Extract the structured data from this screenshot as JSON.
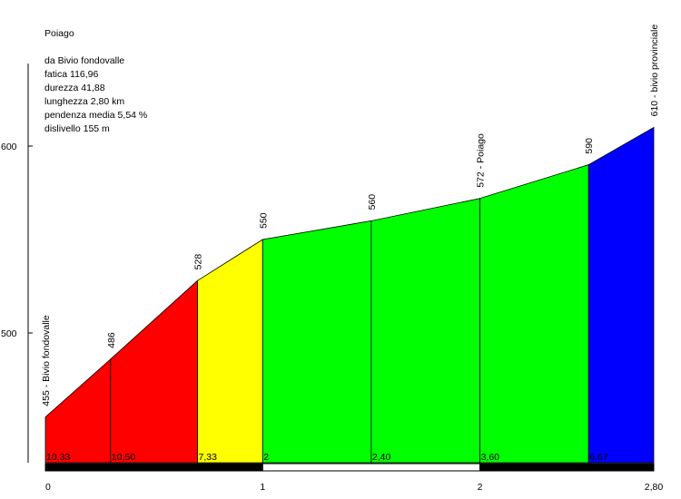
{
  "chart_data": {
    "type": "area",
    "title": "Poiago",
    "info_lines": [
      "da Bivio fondovalle",
      "fatica 116,96",
      "durezza 41,88",
      "lunghezza 2,80 km",
      "pendenza media 5,54 %",
      "dislivello 155 m"
    ],
    "xlabel": "",
    "ylabel": "",
    "xlim": [
      0,
      2.8
    ],
    "ylim": [
      440,
      645
    ],
    "x_ticks": [
      {
        "value": 0,
        "label": "0"
      },
      {
        "value": 1,
        "label": "1"
      },
      {
        "value": 2,
        "label": "2"
      },
      {
        "value": 2.8,
        "label": "2,80"
      }
    ],
    "y_ticks": [
      {
        "value": 500,
        "label": "500"
      },
      {
        "value": 600,
        "label": "600"
      }
    ],
    "points": [
      {
        "km": 0,
        "elevation": 455,
        "label": "455 - Bivio fondovalle"
      },
      {
        "km": 0.3,
        "elevation": 486,
        "label": "486"
      },
      {
        "km": 0.7,
        "elevation": 528,
        "label": "528"
      },
      {
        "km": 1.0,
        "elevation": 550,
        "label": "550"
      },
      {
        "km": 1.5,
        "elevation": 560,
        "label": "560"
      },
      {
        "km": 2.0,
        "elevation": 572,
        "label": "572 - Poiago"
      },
      {
        "km": 2.5,
        "elevation": 590,
        "label": "590"
      },
      {
        "km": 2.8,
        "elevation": 610,
        "label": "610 - bivio provinciale"
      }
    ],
    "segments": [
      {
        "from_km": 0,
        "to_km": 0.3,
        "gradient_label": "10,33",
        "color": "#ff0000"
      },
      {
        "from_km": 0.3,
        "to_km": 0.7,
        "gradient_label": "10,50",
        "color": "#ff0000"
      },
      {
        "from_km": 0.7,
        "to_km": 1.0,
        "gradient_label": "7,33",
        "color": "#ffff00"
      },
      {
        "from_km": 1.0,
        "to_km": 1.5,
        "gradient_label": "2",
        "color": "#00ff00"
      },
      {
        "from_km": 1.5,
        "to_km": 2.0,
        "gradient_label": "2,40",
        "color": "#00ff00"
      },
      {
        "from_km": 2.0,
        "to_km": 2.5,
        "gradient_label": "3,60",
        "color": "#00ff00"
      },
      {
        "from_km": 2.5,
        "to_km": 2.8,
        "gradient_label": "6,67",
        "color": "#0000ff"
      }
    ],
    "km_bar": [
      {
        "from_km": 0,
        "to_km": 1,
        "color": "#000000"
      },
      {
        "from_km": 1,
        "to_km": 2,
        "color": "#ffffff"
      },
      {
        "from_km": 2,
        "to_km": 2.8,
        "color": "#000000"
      }
    ],
    "grid": false,
    "legend": "none"
  }
}
